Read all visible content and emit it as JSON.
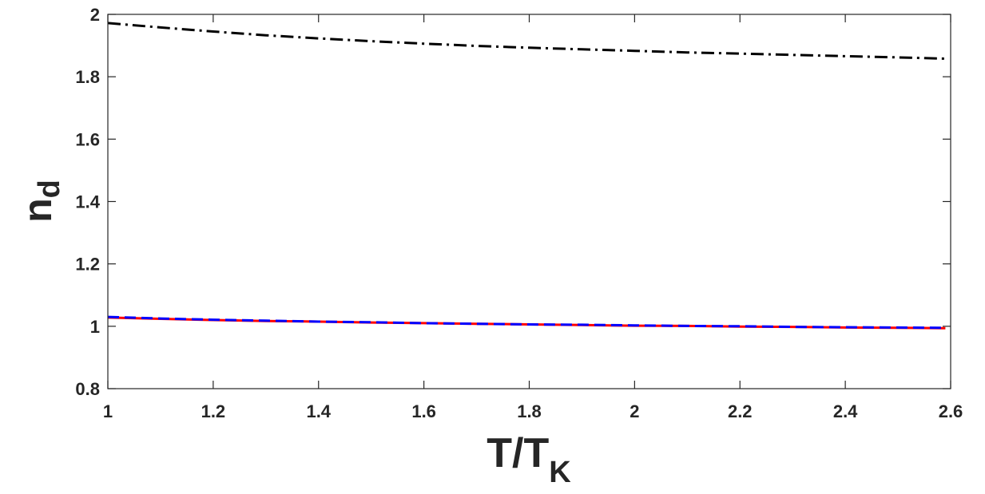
{
  "chart_data": {
    "type": "line",
    "title": "",
    "xlabel": "T/T",
    "xlabel_sub": "K",
    "ylabel": "n",
    "ylabel_sub": "d",
    "xlim": [
      1,
      2.6
    ],
    "ylim": [
      0.8,
      2
    ],
    "xticks": [
      1,
      1.2,
      1.4,
      1.6,
      1.8,
      2,
      2.2,
      2.4,
      2.6
    ],
    "xtick_labels": [
      "1",
      "1.2",
      "1.4",
      "1.6",
      "1.8",
      "2",
      "2.2",
      "2.4",
      "2.6"
    ],
    "yticks": [
      0.8,
      1,
      1.2,
      1.4,
      1.6,
      1.8,
      2
    ],
    "ytick_labels": [
      "0.8",
      "1",
      "1.2",
      "1.4",
      "1.6",
      "1.8",
      "2"
    ],
    "grid": false,
    "legend": "none",
    "x": [
      1.0,
      1.1,
      1.2,
      1.3,
      1.4,
      1.5,
      1.6,
      1.7,
      1.8,
      1.9,
      2.0,
      2.1,
      2.2,
      2.3,
      2.4,
      2.5,
      2.59
    ],
    "series": [
      {
        "color": "#000000",
        "style": "dash-dot",
        "values": [
          1.972,
          1.958,
          1.945,
          1.933,
          1.923,
          1.914,
          1.906,
          1.899,
          1.893,
          1.888,
          1.883,
          1.878,
          1.874,
          1.87,
          1.866,
          1.862,
          1.858
        ]
      },
      {
        "color": "#ff0000",
        "style": "solid",
        "values": [
          1.028,
          1.024,
          1.02,
          1.017,
          1.015,
          1.012,
          1.01,
          1.008,
          1.006,
          1.004,
          1.002,
          1.001,
          0.999,
          0.998,
          0.996,
          0.995,
          0.994
        ]
      },
      {
        "color": "#0000ff",
        "style": "dashed",
        "values": [
          1.03,
          1.025,
          1.021,
          1.018,
          1.015,
          1.013,
          1.01,
          1.008,
          1.006,
          1.005,
          1.003,
          1.001,
          1.0,
          0.998,
          0.997,
          0.996,
          0.995
        ]
      }
    ]
  }
}
